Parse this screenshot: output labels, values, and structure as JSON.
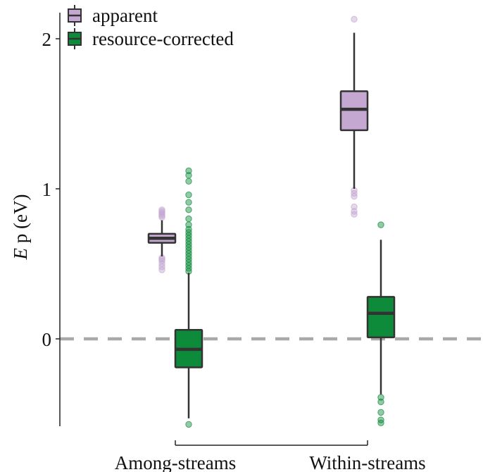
{
  "chart_data": {
    "type": "boxplot",
    "title": "",
    "xlabel": "",
    "ylabel_symbol": "E",
    "ylabel_rest": " p (eV)",
    "ylim": [
      -0.6,
      2.2
    ],
    "yticks": [
      0,
      1,
      2
    ],
    "categories": [
      "Among-streams",
      "Within-streams"
    ],
    "reference_line": {
      "y": 0,
      "style": "dashed",
      "color": "#a9a9a9"
    },
    "legend": {
      "position": "top-left",
      "entries": [
        "apparent",
        "resource-corrected"
      ]
    },
    "series": [
      {
        "name": "apparent",
        "color": "#c4a8d2",
        "boxes": [
          {
            "category": "Among-streams",
            "lower_whisker": 0.55,
            "q1": 0.64,
            "median": 0.67,
            "q3": 0.7,
            "upper_whisker": 0.79,
            "outliers": [
              0.46,
              0.48,
              0.5,
              0.52,
              0.53,
              0.54,
              0.81,
              0.82,
              0.83,
              0.84,
              0.85,
              0.86
            ]
          },
          {
            "category": "Within-streams",
            "lower_whisker": 1.0,
            "q1": 1.39,
            "median": 1.53,
            "q3": 1.65,
            "upper_whisker": 2.04,
            "outliers": [
              0.83,
              0.85,
              0.88,
              0.95,
              0.97,
              0.99,
              2.13
            ]
          }
        ]
      },
      {
        "name": "resource-corrected",
        "color": "#0d8a3a",
        "boxes": [
          {
            "category": "Among-streams",
            "lower_whisker": -0.53,
            "q1": -0.19,
            "median": -0.07,
            "q3": 0.06,
            "upper_whisker": 0.44,
            "outliers": [
              -0.57,
              0.45,
              0.47,
              0.49,
              0.51,
              0.53,
              0.55,
              0.57,
              0.59,
              0.61,
              0.63,
              0.65,
              0.67,
              0.69,
              0.71,
              0.73,
              0.76,
              0.8,
              0.86,
              0.91,
              0.96,
              1.05,
              1.09,
              1.12
            ]
          },
          {
            "category": "Within-streams",
            "lower_whisker": -0.37,
            "q1": 0.01,
            "median": 0.17,
            "q3": 0.28,
            "upper_whisker": 0.66,
            "outliers": [
              -0.39,
              -0.42,
              -0.49,
              -0.54,
              -0.56,
              0.76
            ]
          }
        ]
      }
    ]
  }
}
